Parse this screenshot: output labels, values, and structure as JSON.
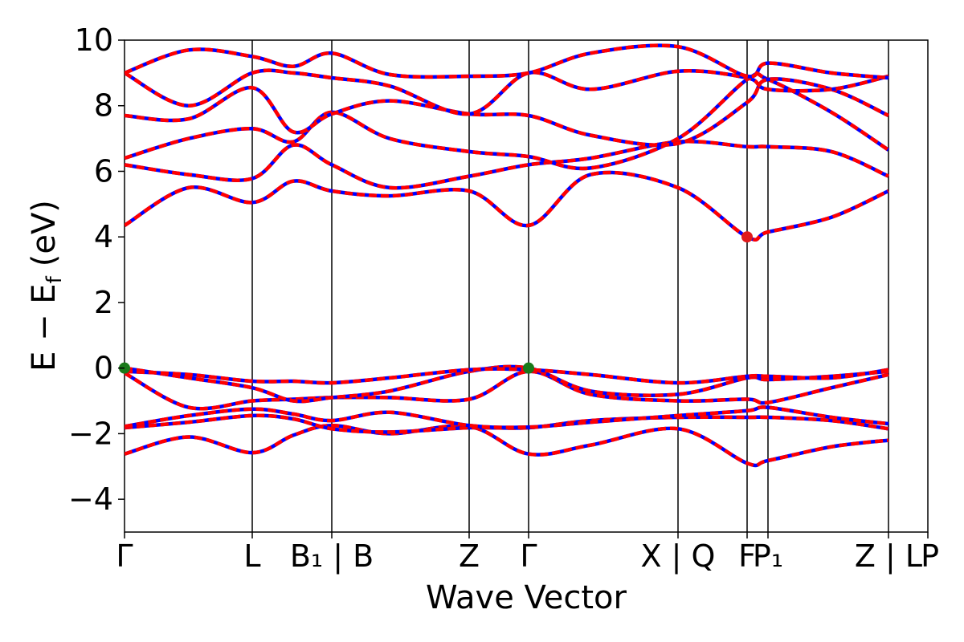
{
  "chart_data": {
    "type": "line",
    "title": "",
    "xlabel": "Wave Vector",
    "ylabel": "E − E_f (eV)",
    "ylabel_parts": {
      "main": "E − E",
      "sub": "f",
      "unit": "(eV)"
    },
    "ylim": [
      -5,
      10
    ],
    "yticks": [
      -4,
      -2,
      0,
      2,
      4,
      6,
      8,
      10
    ],
    "ytick_labels": [
      "−4",
      "−2",
      "0",
      "2",
      "4",
      "6",
      "8",
      "10"
    ],
    "kpath_ticks": [
      {
        "x": 0.0,
        "label": "Γ"
      },
      {
        "x": 0.159,
        "label": "L"
      },
      {
        "x": 0.258,
        "label": "B₁ | B"
      },
      {
        "x": 0.429,
        "label": "Z"
      },
      {
        "x": 0.503,
        "label": "Γ"
      },
      {
        "x": 0.689,
        "label": "X | Q"
      },
      {
        "x": 0.775,
        "label": "F"
      },
      {
        "x": 0.801,
        "label": "P₁"
      },
      {
        "x": 0.951,
        "label": "Z | L"
      },
      {
        "x": 1.0,
        "label": "P"
      }
    ],
    "xlim": [
      0,
      1
    ],
    "colors": {
      "dft": "#0000ff",
      "wannier": "#ff0000",
      "vbm": "#1a7a1a",
      "cbm": "#e0191b"
    },
    "extrema": {
      "vbm": [
        {
          "x": 0.0,
          "y": 0.0
        },
        {
          "x": 0.503,
          "y": 0.0
        }
      ],
      "cbm": [
        {
          "x": 0.775,
          "y": 4.0
        }
      ]
    },
    "series": [
      {
        "x": [
          0,
          0.08,
          0.159,
          0.21,
          0.258,
          0.33,
          0.429,
          0.503,
          0.58,
          0.689,
          0.775,
          0.801,
          0.88,
          0.951
        ],
        "y": [
          -2.62,
          -2.1,
          -2.58,
          -2.05,
          -1.75,
          -2.0,
          -1.78,
          -2.62,
          -2.35,
          -1.85,
          -2.9,
          -2.82,
          -2.4,
          -2.2
        ]
      },
      {
        "x": [
          0,
          0.08,
          0.159,
          0.21,
          0.258,
          0.33,
          0.429,
          0.503,
          0.58,
          0.689,
          0.775,
          0.801,
          0.88,
          0.951
        ],
        "y": [
          -1.82,
          -1.65,
          -1.45,
          -1.55,
          -1.85,
          -1.95,
          -1.82,
          -1.82,
          -1.6,
          -1.5,
          -1.5,
          -1.5,
          -1.6,
          -1.85
        ]
      },
      {
        "x": [
          0,
          0.08,
          0.159,
          0.21,
          0.258,
          0.33,
          0.429,
          0.503,
          0.58,
          0.689,
          0.775,
          0.801,
          0.88,
          0.951
        ],
        "y": [
          -1.78,
          -1.45,
          -1.25,
          -1.4,
          -1.6,
          -1.35,
          -1.75,
          -1.8,
          -1.65,
          -1.45,
          -1.3,
          -1.2,
          -1.5,
          -1.7
        ]
      },
      {
        "x": [
          0,
          0.08,
          0.159,
          0.21,
          0.258,
          0.33,
          0.429,
          0.503,
          0.58,
          0.689,
          0.775,
          0.801,
          0.88,
          0.951
        ],
        "y": [
          -0.15,
          -1.2,
          -1.0,
          -0.95,
          -0.9,
          -0.9,
          -0.95,
          -0.1,
          -0.8,
          -1.0,
          -0.95,
          -1.05,
          -0.6,
          -0.2
        ]
      },
      {
        "x": [
          0,
          0.08,
          0.159,
          0.21,
          0.258,
          0.33,
          0.429,
          0.503,
          0.58,
          0.689,
          0.775,
          0.801,
          0.88,
          0.951
        ],
        "y": [
          0.0,
          -0.3,
          -0.6,
          -1.0,
          -0.9,
          -0.7,
          -0.1,
          0.0,
          -0.7,
          -0.8,
          -0.3,
          -0.35,
          -0.25,
          -0.1
        ]
      },
      {
        "x": [
          0,
          0.08,
          0.159,
          0.21,
          0.258,
          0.33,
          0.429,
          0.503,
          0.58,
          0.689,
          0.775,
          0.801,
          0.88,
          0.951
        ],
        "y": [
          -0.1,
          -0.2,
          -0.4,
          -0.4,
          -0.45,
          -0.3,
          -0.05,
          -0.05,
          -0.2,
          -0.45,
          -0.25,
          -0.25,
          -0.3,
          -0.05
        ]
      },
      {
        "x": [
          0,
          0.08,
          0.159,
          0.21,
          0.258,
          0.33,
          0.429,
          0.503,
          0.58,
          0.689,
          0.775,
          0.801,
          0.88,
          0.951
        ],
        "y": [
          4.35,
          5.5,
          5.05,
          5.7,
          5.4,
          5.25,
          5.4,
          4.35,
          5.9,
          5.5,
          4.0,
          4.15,
          4.6,
          5.4
        ]
      },
      {
        "x": [
          0,
          0.08,
          0.159,
          0.21,
          0.258,
          0.33,
          0.429,
          0.503,
          0.58,
          0.689,
          0.775,
          0.801,
          0.88,
          0.951
        ],
        "y": [
          6.2,
          5.9,
          5.78,
          6.8,
          6.2,
          5.5,
          5.85,
          6.2,
          6.4,
          6.9,
          6.75,
          6.75,
          6.6,
          5.85
        ]
      },
      {
        "x": [
          0,
          0.08,
          0.159,
          0.21,
          0.258,
          0.33,
          0.429,
          0.503,
          0.58,
          0.689,
          0.775,
          0.801,
          0.88,
          0.951
        ],
        "y": [
          6.4,
          7.0,
          7.3,
          6.9,
          7.8,
          7.0,
          6.6,
          6.45,
          6.1,
          7.0,
          8.8,
          8.8,
          7.8,
          6.65
        ]
      },
      {
        "x": [
          0,
          0.08,
          0.159,
          0.21,
          0.258,
          0.33,
          0.429,
          0.503,
          0.58,
          0.689,
          0.775,
          0.801,
          0.88,
          0.951
        ],
        "y": [
          7.7,
          7.6,
          8.55,
          7.2,
          7.75,
          8.15,
          7.75,
          7.7,
          7.1,
          6.85,
          8.1,
          8.8,
          8.5,
          7.7
        ]
      },
      {
        "x": [
          0,
          0.08,
          0.159,
          0.21,
          0.258,
          0.33,
          0.429,
          0.503,
          0.58,
          0.689,
          0.775,
          0.801,
          0.88,
          0.951
        ],
        "y": [
          9.0,
          8.0,
          9.0,
          9.0,
          8.85,
          8.6,
          7.75,
          9.0,
          8.5,
          9.05,
          8.85,
          8.5,
          8.5,
          8.9
        ]
      },
      {
        "x": [
          0,
          0.08,
          0.159,
          0.21,
          0.258,
          0.33,
          0.429,
          0.503,
          0.58,
          0.689,
          0.775,
          0.801,
          0.88,
          0.951
        ],
        "y": [
          9.0,
          9.7,
          9.5,
          9.2,
          9.6,
          8.95,
          8.9,
          9.0,
          9.6,
          9.8,
          8.9,
          9.3,
          9.0,
          8.85
        ]
      }
    ]
  }
}
